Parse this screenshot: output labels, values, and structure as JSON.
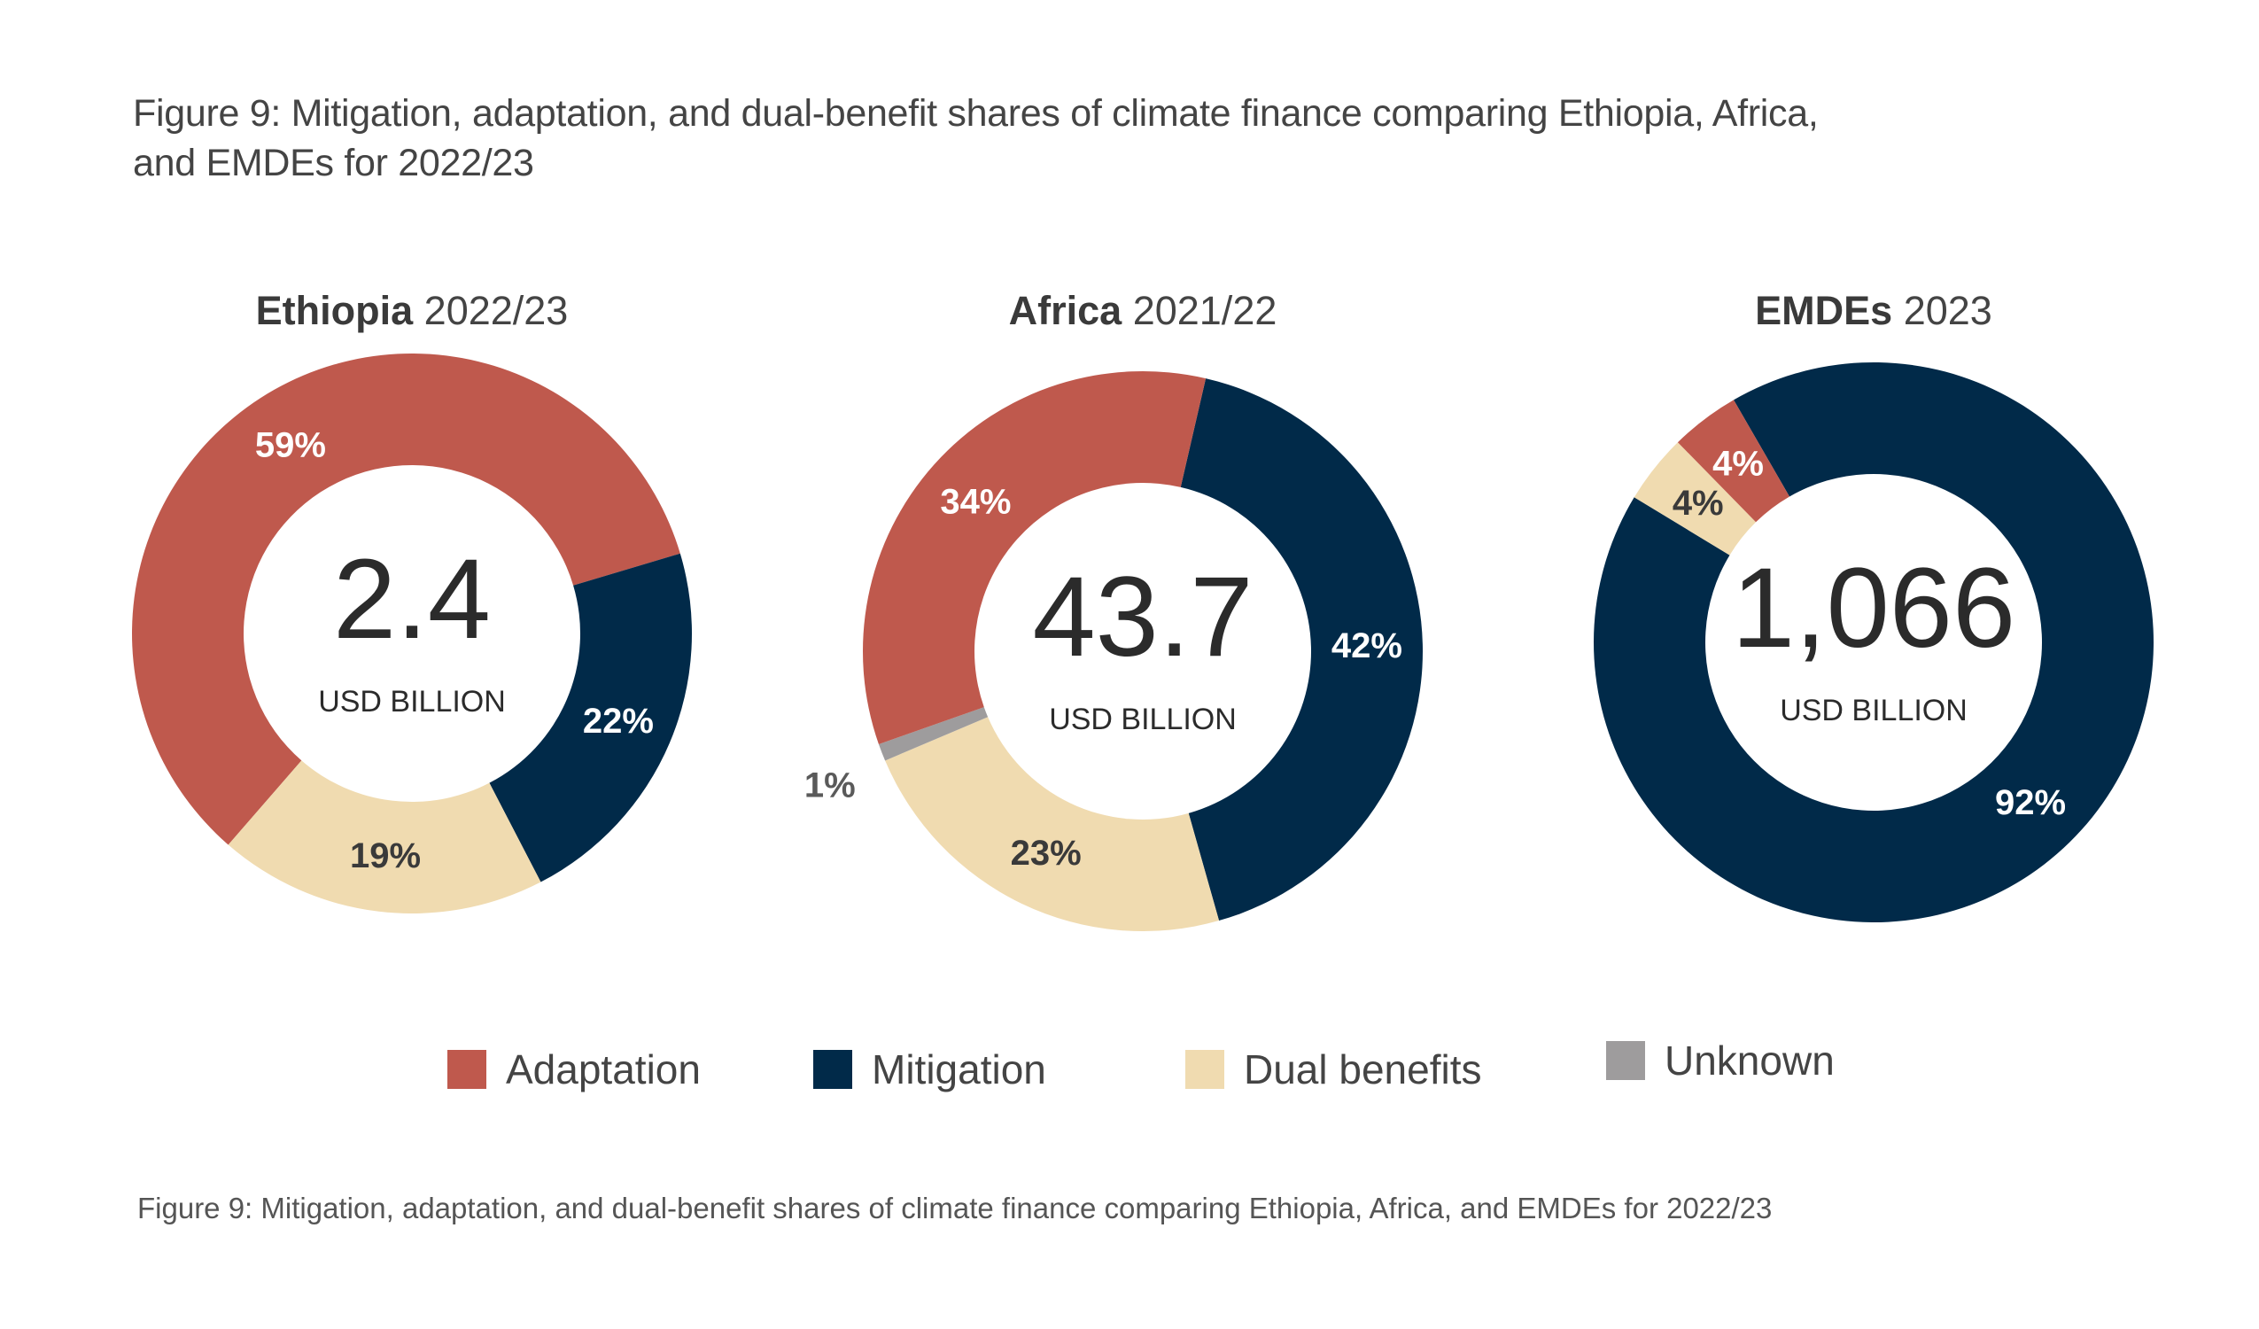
{
  "title": "Figure 9: Mitigation, adaptation, and dual-benefit shares of climate finance comparing Ethiopia, Africa, and EMDEs for 2022/23",
  "title_lines": [
    "Figure 9: Mitigation, adaptation, and dual-benefit shares of climate finance comparing Ethiopia, Africa,",
    "and EMDEs for 2022/23"
  ],
  "caption": "Figure 9: Mitigation, adaptation, and dual-benefit shares of climate finance comparing Ethiopia, Africa, and EMDEs for 2022/23",
  "colors": {
    "Adaptation": "#bf594d",
    "Mitigation": "#012a49",
    "Dual benefits": "#f0dbb0",
    "Unknown": "#9e9c9d"
  },
  "legend": [
    {
      "label": "Adaptation",
      "color": "#bf594d"
    },
    {
      "label": "Mitigation",
      "color": "#012a49"
    },
    {
      "label": "Dual benefits",
      "color": "#f0dbb0"
    },
    {
      "label": "Unknown",
      "color": "#9e9c9d"
    }
  ],
  "chart_data": [
    {
      "type": "pie",
      "variant": "donut",
      "title_bold": "Ethiopia",
      "title_rest": "2022/23",
      "center_value": "2.4",
      "center_unit": "USD BILLION",
      "slices": [
        {
          "name": "Adaptation",
          "value": 59,
          "label": "59%"
        },
        {
          "name": "Mitigation",
          "value": 22,
          "label": "22%"
        },
        {
          "name": "Dual benefits",
          "value": 19,
          "label": "19%"
        }
      ]
    },
    {
      "type": "pie",
      "variant": "donut",
      "title_bold": "Africa",
      "title_rest": "2021/22",
      "center_value": "43.7",
      "center_unit": "USD BILLION",
      "slices": [
        {
          "name": "Mitigation",
          "value": 42,
          "label": "42%"
        },
        {
          "name": "Dual benefits",
          "value": 23,
          "label": "23%"
        },
        {
          "name": "Unknown",
          "value": 1,
          "label": "1%"
        },
        {
          "name": "Adaptation",
          "value": 34,
          "label": "34%"
        }
      ]
    },
    {
      "type": "pie",
      "variant": "donut",
      "title_bold": "EMDEs",
      "title_rest": "2023",
      "center_value": "1,066",
      "center_unit": "USD BILLION",
      "slices": [
        {
          "name": "Mitigation",
          "value": 92,
          "label": "92%"
        },
        {
          "name": "Dual benefits",
          "value": 4,
          "label": "4%"
        },
        {
          "name": "Adaptation",
          "value": 4,
          "label": "4%"
        }
      ]
    }
  ]
}
